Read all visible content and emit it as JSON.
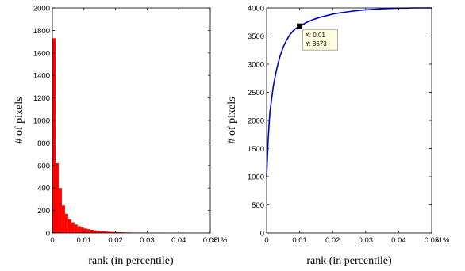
{
  "chart_data": [
    {
      "type": "bar",
      "xlabel": "rank (in percentile)",
      "ylabel": "# of pixels",
      "x_unit_suffix": "x1%",
      "xlim": [
        0,
        0.05
      ],
      "ylim": [
        0,
        2000
      ],
      "xticks": [
        "0",
        "0.01",
        "0.02",
        "0.03",
        "0.04",
        "0.05"
      ],
      "yticks": [
        "0",
        "200",
        "400",
        "600",
        "800",
        "1000",
        "1200",
        "1400",
        "1600",
        "1800",
        "2000"
      ],
      "bar_color": "#ff0000",
      "bin_width": 0.001,
      "bin_starts": [
        0.0,
        0.001,
        0.002,
        0.003,
        0.004,
        0.005,
        0.006,
        0.007,
        0.008,
        0.009,
        0.01,
        0.011,
        0.012,
        0.013,
        0.014,
        0.015,
        0.016,
        0.017,
        0.018,
        0.019,
        0.02,
        0.021,
        0.022,
        0.023,
        0.024,
        0.025,
        0.026,
        0.027,
        0.028,
        0.029,
        0.03,
        0.031,
        0.032,
        0.033,
        0.034,
        0.035,
        0.036,
        0.037,
        0.038,
        0.039,
        0.04,
        0.041,
        0.042,
        0.043,
        0.044,
        0.045,
        0.046,
        0.047,
        0.048,
        0.049
      ],
      "values": [
        1730,
        620,
        400,
        245,
        170,
        120,
        95,
        75,
        60,
        48,
        40,
        34,
        28,
        24,
        20,
        17,
        14,
        12,
        10,
        9,
        8,
        7,
        6,
        5,
        5,
        4,
        4,
        3,
        3,
        3,
        2,
        2,
        2,
        2,
        2,
        1,
        1,
        1,
        1,
        1,
        1,
        1,
        1,
        1,
        1,
        1,
        1,
        1,
        1,
        1
      ],
      "grid": false
    },
    {
      "type": "line",
      "xlabel": "rank (in percentile)",
      "ylabel": "# of pixels",
      "x_unit_suffix": "x1%",
      "xlim": [
        0,
        0.05
      ],
      "ylim": [
        0,
        4000
      ],
      "xticks": [
        "0",
        "0.01",
        "0.02",
        "0.03",
        "0.04",
        "0.05"
      ],
      "yticks": [
        "0",
        "500",
        "1000",
        "1500",
        "2000",
        "2500",
        "3000",
        "3500",
        "4000"
      ],
      "line_color": "#0000cc",
      "x": [
        0,
        0.0005,
        0.001,
        0.002,
        0.003,
        0.004,
        0.005,
        0.006,
        0.007,
        0.008,
        0.009,
        0.01,
        0.012,
        0.014,
        0.016,
        0.018,
        0.02,
        0.022,
        0.025,
        0.028,
        0.031,
        0.035,
        0.04,
        0.045,
        0.05
      ],
      "y": [
        1000,
        1700,
        2150,
        2600,
        2900,
        3130,
        3300,
        3420,
        3520,
        3590,
        3640,
        3673,
        3740,
        3790,
        3830,
        3860,
        3890,
        3910,
        3935,
        3955,
        3970,
        3985,
        3995,
        4000,
        4000
      ],
      "datatip": {
        "x": 0.01,
        "y": 3673,
        "x_text": "X: 0.01",
        "y_text": "Y: 3673"
      },
      "grid": false
    }
  ]
}
